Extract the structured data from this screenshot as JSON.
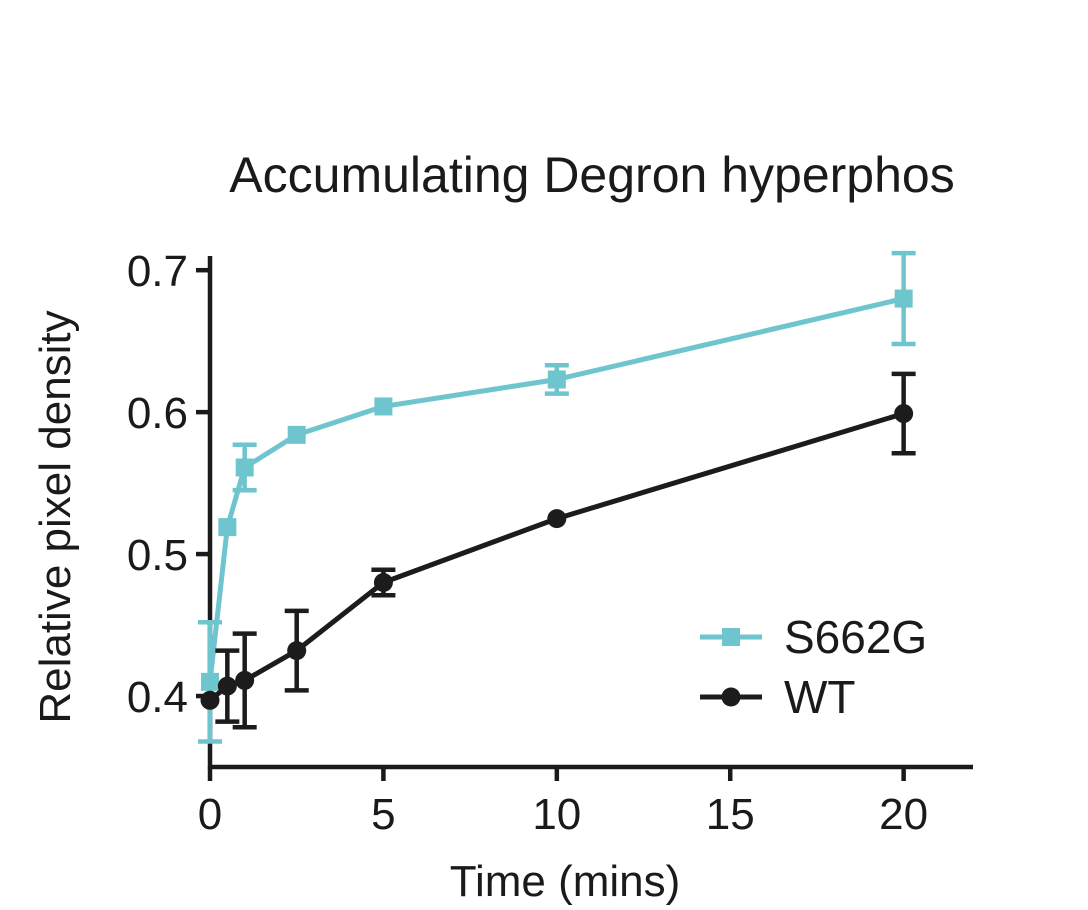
{
  "chart_data": {
    "type": "line",
    "title": "Accumulating Degron hyperphos",
    "xlabel": "Time (mins)",
    "ylabel": "Relative pixel density",
    "xlim": [
      0,
      22
    ],
    "ylim": [
      0.35,
      0.71
    ],
    "xticks": [
      0,
      5,
      10,
      15,
      20
    ],
    "xtick_labels": [
      "0",
      "5",
      "10",
      "15",
      "20"
    ],
    "yticks": [
      0.4,
      0.5,
      0.6,
      0.7
    ],
    "ytick_labels": [
      "0.4",
      "0.5",
      "0.6",
      "0.7"
    ],
    "grid": false,
    "legend_position": "lower-right",
    "series": [
      {
        "name": "S662G",
        "color": "#6ec5cd",
        "marker": "square",
        "x": [
          0,
          0.5,
          1,
          2.5,
          5,
          10,
          20
        ],
        "y": [
          0.41,
          0.519,
          0.561,
          0.584,
          0.604,
          0.623,
          0.68
        ],
        "error": [
          0.042,
          0.002,
          0.016,
          0.002,
          0.002,
          0.01,
          0.032
        ]
      },
      {
        "name": "WT",
        "color": "#1c1c1c",
        "marker": "circle",
        "x": [
          0,
          0.5,
          1,
          2.5,
          5,
          10,
          20
        ],
        "y": [
          0.397,
          0.407,
          0.411,
          0.432,
          0.48,
          0.525,
          0.599
        ],
        "error": [
          0.002,
          0.025,
          0.033,
          0.028,
          0.009,
          0.002,
          0.028
        ]
      }
    ]
  }
}
